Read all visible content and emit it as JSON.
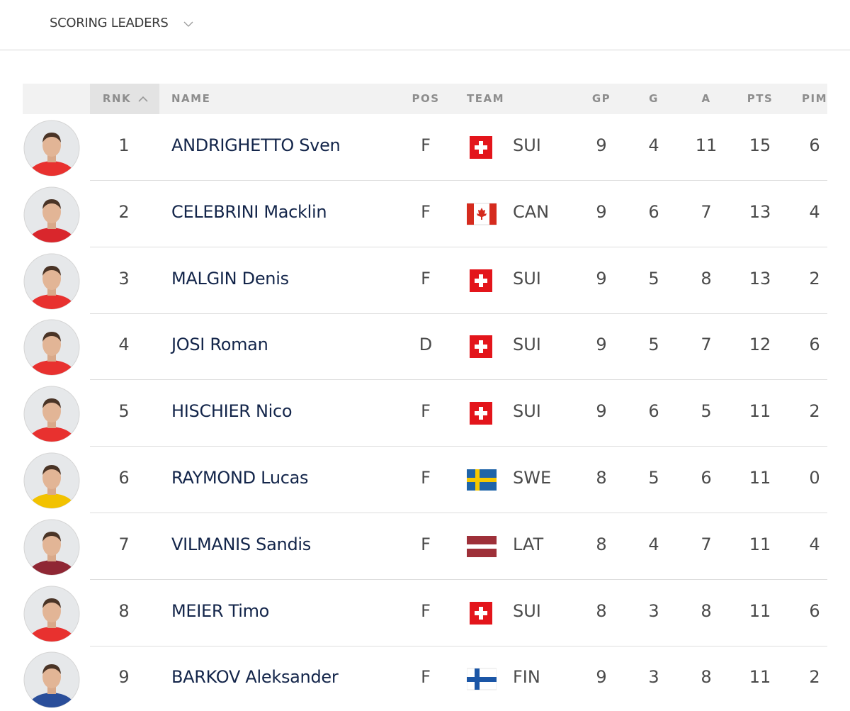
{
  "header": {
    "title": "SCORING LEADERS"
  },
  "table": {
    "columns": [
      "RNK",
      "NAME",
      "POS",
      "TEAM",
      "GP",
      "G",
      "A",
      "PTS",
      "PIM"
    ],
    "rows": [
      {
        "rank": 1,
        "name": "ANDRIGHETTO Sven",
        "pos": "F",
        "team": "SUI",
        "gp": 9,
        "g": 4,
        "a": 11,
        "pts": 15,
        "pim": 6
      },
      {
        "rank": 2,
        "name": "CELEBRINI Macklin",
        "pos": "F",
        "team": "CAN",
        "gp": 9,
        "g": 6,
        "a": 7,
        "pts": 13,
        "pim": 4
      },
      {
        "rank": 3,
        "name": "MALGIN Denis",
        "pos": "F",
        "team": "SUI",
        "gp": 9,
        "g": 5,
        "a": 8,
        "pts": 13,
        "pim": 2
      },
      {
        "rank": 4,
        "name": "JOSI Roman",
        "pos": "D",
        "team": "SUI",
        "gp": 9,
        "g": 5,
        "a": 7,
        "pts": 12,
        "pim": 6
      },
      {
        "rank": 5,
        "name": "HISCHIER Nico",
        "pos": "F",
        "team": "SUI",
        "gp": 9,
        "g": 6,
        "a": 5,
        "pts": 11,
        "pim": 2
      },
      {
        "rank": 6,
        "name": "RAYMOND Lucas",
        "pos": "F",
        "team": "SWE",
        "gp": 8,
        "g": 5,
        "a": 6,
        "pts": 11,
        "pim": 0
      },
      {
        "rank": 7,
        "name": "VILMANIS Sandis",
        "pos": "F",
        "team": "LAT",
        "gp": 8,
        "g": 4,
        "a": 7,
        "pts": 11,
        "pim": 4
      },
      {
        "rank": 8,
        "name": "MEIER Timo",
        "pos": "F",
        "team": "SUI",
        "gp": 8,
        "g": 3,
        "a": 8,
        "pts": 11,
        "pim": 6
      },
      {
        "rank": 9,
        "name": "BARKOV Aleksander",
        "pos": "F",
        "team": "FIN",
        "gp": 9,
        "g": 3,
        "a": 8,
        "pts": 11,
        "pim": 2
      }
    ]
  }
}
